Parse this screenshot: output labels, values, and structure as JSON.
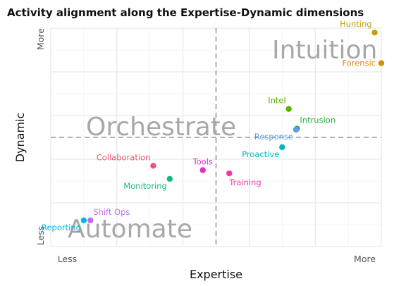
{
  "title": "Activity alignment along the Expertise-Dynamic dimensions",
  "chart_data": {
    "type": "scatter",
    "title": "Activity alignment along the Expertise-Dynamic dimensions",
    "xlabel": "Expertise",
    "ylabel": "Dynamic",
    "xlim": [
      0,
      10
    ],
    "ylim": [
      0,
      10
    ],
    "x_ticks": [
      {
        "value": 0.5,
        "label": "Less"
      },
      {
        "value": 9.5,
        "label": "More"
      }
    ],
    "y_ticks": [
      {
        "value": 0.5,
        "label": "Less"
      },
      {
        "value": 9.5,
        "label": "More"
      }
    ],
    "reference_lines": {
      "x": 5,
      "y": 5
    },
    "grid": true,
    "quadrant_labels": [
      "Intuition",
      "Orchestrate",
      "Automate"
    ],
    "points": [
      {
        "name": "Hunting",
        "x": 9.8,
        "y": 9.8,
        "color": "#c4a000",
        "label_pos": "above-left"
      },
      {
        "name": "Forensic",
        "x": 10.0,
        "y": 8.4,
        "color": "#e08b00",
        "label_pos": "left"
      },
      {
        "name": "Intel",
        "x": 7.2,
        "y": 6.3,
        "color": "#56b300",
        "label_pos": "above-left"
      },
      {
        "name": "Intrusion",
        "x": 7.45,
        "y": 5.4,
        "color": "#22b238",
        "label_pos": "above-right"
      },
      {
        "name": "Response",
        "x": 7.42,
        "y": 5.35,
        "color": "#5c9ee8",
        "label_pos": "below-left"
      },
      {
        "name": "Proactive",
        "x": 7.0,
        "y": 4.55,
        "color": "#00b8c0",
        "label_pos": "below-left"
      },
      {
        "name": "Collaboration",
        "x": 3.1,
        "y": 3.7,
        "color": "#f2556e",
        "label_pos": "above-left"
      },
      {
        "name": "Tools",
        "x": 4.6,
        "y": 3.5,
        "color": "#e030c8",
        "label_pos": "above"
      },
      {
        "name": "Training",
        "x": 5.4,
        "y": 3.35,
        "color": "#f538a5",
        "label_pos": "below-right"
      },
      {
        "name": "Monitoring",
        "x": 3.6,
        "y": 3.1,
        "color": "#13b985",
        "label_pos": "below-left"
      },
      {
        "name": "Shift Ops",
        "x": 1.2,
        "y": 1.2,
        "color": "#c36bf3",
        "label_pos": "above-right"
      },
      {
        "name": "Reporting",
        "x": 1.0,
        "y": 1.2,
        "color": "#00b5e8",
        "label_pos": "below-left"
      }
    ]
  }
}
